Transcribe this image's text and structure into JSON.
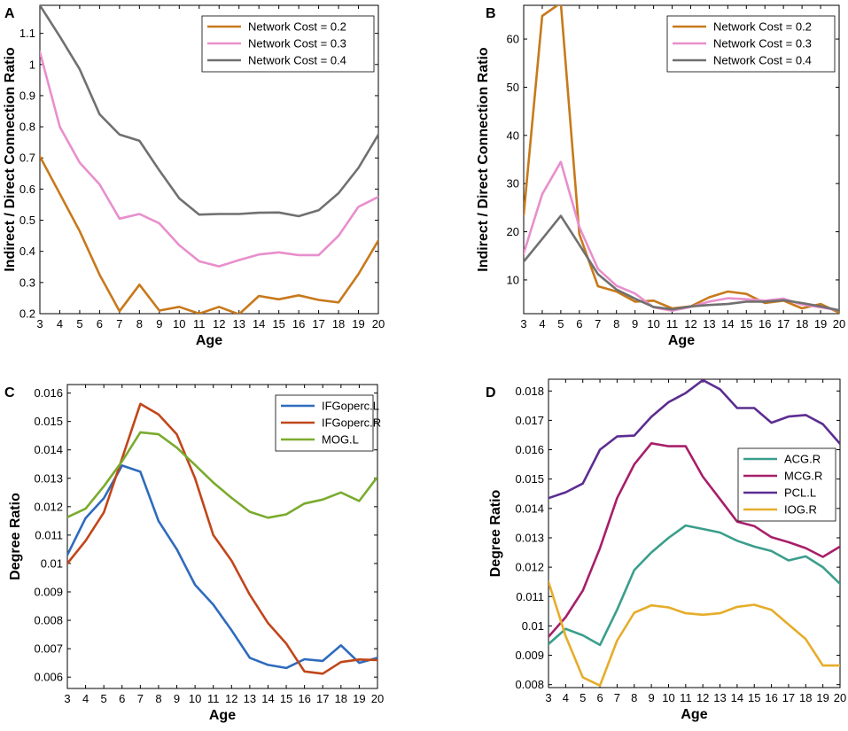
{
  "chart_data": [
    {
      "panel": "A",
      "type": "line",
      "xlabel": "Age",
      "ylabel": "Indirect / Direct Connection Ratio",
      "x": [
        3,
        4,
        5,
        6,
        7,
        8,
        9,
        10,
        11,
        12,
        13,
        14,
        15,
        16,
        17,
        18,
        19,
        20
      ],
      "xlim": [
        3,
        20
      ],
      "ylim": [
        0.2,
        1.19
      ],
      "yticks": [
        0.2,
        0.3,
        0.4,
        0.5,
        0.6,
        0.7,
        0.8,
        0.9,
        1,
        1.1
      ],
      "ytick_labels": [
        "0.2",
        "0.3",
        "0.4",
        "0.5",
        "0.6",
        "0.7",
        "0.8",
        "0.9",
        "1",
        "1.1"
      ],
      "legend_position": "top-right",
      "series": [
        {
          "name": "Network Cost = 0.2",
          "color": "#c8791b",
          "values": [
            0.705,
            0.585,
            0.465,
            0.325,
            0.208,
            0.293,
            0.21,
            0.222,
            0.2,
            0.222,
            0.198,
            0.257,
            0.246,
            0.259,
            0.244,
            0.236,
            0.327,
            0.435
          ]
        },
        {
          "name": "Network Cost = 0.3",
          "color": "#e88fcd",
          "values": [
            1.04,
            0.8,
            0.685,
            0.615,
            0.505,
            0.52,
            0.49,
            0.42,
            0.368,
            0.352,
            0.372,
            0.39,
            0.397,
            0.388,
            0.388,
            0.45,
            0.543,
            0.575
          ]
        },
        {
          "name": "Network Cost = 0.4",
          "color": "#707070",
          "values": [
            1.19,
            1.09,
            0.985,
            0.84,
            0.775,
            0.755,
            0.66,
            0.57,
            0.518,
            0.52,
            0.52,
            0.524,
            0.525,
            0.513,
            0.532,
            0.587,
            0.668,
            0.775
          ]
        }
      ]
    },
    {
      "panel": "B",
      "type": "line",
      "xlabel": "Age",
      "ylabel": "Indirect / Direct Connection Ratio",
      "x": [
        3,
        4,
        5,
        6,
        7,
        8,
        9,
        10,
        11,
        12,
        13,
        14,
        15,
        16,
        17,
        18,
        19,
        20
      ],
      "xlim": [
        3,
        20
      ],
      "ylim": [
        3,
        67
      ],
      "yticks": [
        10,
        20,
        30,
        40,
        50,
        60
      ],
      "ytick_labels": [
        "10",
        "20",
        "30",
        "40",
        "50",
        "60"
      ],
      "legend_position": "top-right",
      "series": [
        {
          "name": "Network Cost = 0.2",
          "color": "#c8791b",
          "values": [
            23.5,
            64.8,
            67.5,
            19.5,
            8.7,
            7.6,
            5.5,
            5.7,
            4.1,
            4.5,
            6.4,
            7.6,
            7.1,
            5.2,
            5.7,
            4.1,
            5.0,
            3.2
          ]
        },
        {
          "name": "Network Cost = 0.3",
          "color": "#e88fcd",
          "values": [
            15.5,
            27.8,
            34.5,
            21.0,
            12.3,
            8.8,
            7.2,
            4.3,
            3.6,
            4.4,
            5.5,
            6.2,
            6.0,
            5.7,
            6.1,
            4.9,
            4.3,
            3.7
          ]
        },
        {
          "name": "Network Cost = 0.4",
          "color": "#707070",
          "values": [
            13.8,
            18.5,
            23.3,
            17.3,
            11.2,
            8.0,
            6.1,
            4.4,
            3.9,
            4.5,
            4.8,
            5.0,
            5.5,
            5.5,
            5.8,
            5.2,
            4.5,
            3.7
          ]
        }
      ]
    },
    {
      "panel": "C",
      "type": "line",
      "xlabel": "Age",
      "ylabel": "Degree Ratio",
      "x": [
        3,
        4,
        5,
        6,
        7,
        8,
        9,
        10,
        11,
        12,
        13,
        14,
        15,
        16,
        17,
        18,
        19,
        20
      ],
      "xlim": [
        3,
        20
      ],
      "ylim": [
        0.0056,
        0.0163
      ],
      "yticks": [
        0.006,
        0.007,
        0.008,
        0.009,
        0.01,
        0.011,
        0.012,
        0.013,
        0.014,
        0.015,
        0.016
      ],
      "ytick_labels": [
        "0.006",
        "0.007",
        "0.008",
        "0.009",
        "0.01",
        "0.011",
        "0.012",
        "0.013",
        "0.014",
        "0.015",
        "0.016"
      ],
      "legend_position": "top-right",
      "series": [
        {
          "name": "IFGoperc.L",
          "color": "#2e6bbd",
          "values": [
            0.0103,
            0.0116,
            0.0123,
            0.01345,
            0.01323,
            0.0115,
            0.0105,
            0.00925,
            0.00855,
            0.00765,
            0.00668,
            0.00643,
            0.00632,
            0.00663,
            0.00657,
            0.00712,
            0.0065,
            0.00668
          ]
        },
        {
          "name": "IFGoperc.R",
          "color": "#c1461a",
          "values": [
            0.01,
            0.0108,
            0.0118,
            0.0137,
            0.01562,
            0.01525,
            0.01455,
            0.013,
            0.011,
            0.0101,
            0.0089,
            0.0079,
            0.00718,
            0.0062,
            0.00612,
            0.00653,
            0.00662,
            0.0066
          ]
        },
        {
          "name": "MOG.L",
          "color": "#7aab2e",
          "values": [
            0.01163,
            0.01193,
            0.01272,
            0.0136,
            0.01462,
            0.01455,
            0.01408,
            0.01347,
            0.01285,
            0.01231,
            0.01182,
            0.01161,
            0.01173,
            0.01211,
            0.01225,
            0.0125,
            0.0122,
            0.01305
          ]
        }
      ]
    },
    {
      "panel": "D",
      "type": "line",
      "xlabel": "Age",
      "ylabel": "Degree Ratio",
      "x": [
        3,
        4,
        5,
        6,
        7,
        8,
        9,
        10,
        11,
        12,
        13,
        14,
        15,
        16,
        17,
        18,
        19,
        20
      ],
      "xlim": [
        3,
        20
      ],
      "ylim": [
        0.0079,
        0.0184
      ],
      "yticks": [
        0.008,
        0.009,
        0.01,
        0.011,
        0.012,
        0.013,
        0.014,
        0.015,
        0.016,
        0.017,
        0.018
      ],
      "ytick_labels": [
        "0.008",
        "0.009",
        "0.01",
        "0.011",
        "0.012",
        "0.013",
        "0.014",
        "0.015",
        "0.016",
        "0.017",
        "0.018"
      ],
      "legend_position": "center-right",
      "series": [
        {
          "name": "ACG.R",
          "color": "#3a9e8c",
          "values": [
            0.00938,
            0.0099,
            0.00968,
            0.00935,
            0.01055,
            0.0119,
            0.0125,
            0.013,
            0.01342,
            0.0133,
            0.01318,
            0.0129,
            0.0127,
            0.01255,
            0.01223,
            0.01237,
            0.012,
            0.01143
          ]
        },
        {
          "name": "MCG.R",
          "color": "#a71f6a",
          "values": [
            0.00963,
            0.0103,
            0.0112,
            0.01265,
            0.01435,
            0.0155,
            0.01622,
            0.01612,
            0.01612,
            0.01508,
            0.01432,
            0.01355,
            0.0134,
            0.01302,
            0.01285,
            0.01265,
            0.01235,
            0.0127
          ]
        },
        {
          "name": "PCL.L",
          "color": "#5c2d91",
          "values": [
            0.01435,
            0.01455,
            0.01485,
            0.016,
            0.01645,
            0.01648,
            0.01712,
            0.01762,
            0.01793,
            0.01837,
            0.01806,
            0.01742,
            0.01742,
            0.01692,
            0.01713,
            0.01718,
            0.01687,
            0.0162
          ]
        },
        {
          "name": "IOG.R",
          "color": "#e6ad2a",
          "values": [
            0.0115,
            0.00965,
            0.00825,
            0.00797,
            0.0095,
            0.01045,
            0.0107,
            0.01063,
            0.01043,
            0.01038,
            0.01043,
            0.01065,
            0.01072,
            0.01055,
            0.01005,
            0.00955,
            0.00865,
            0.00865
          ]
        }
      ]
    }
  ]
}
